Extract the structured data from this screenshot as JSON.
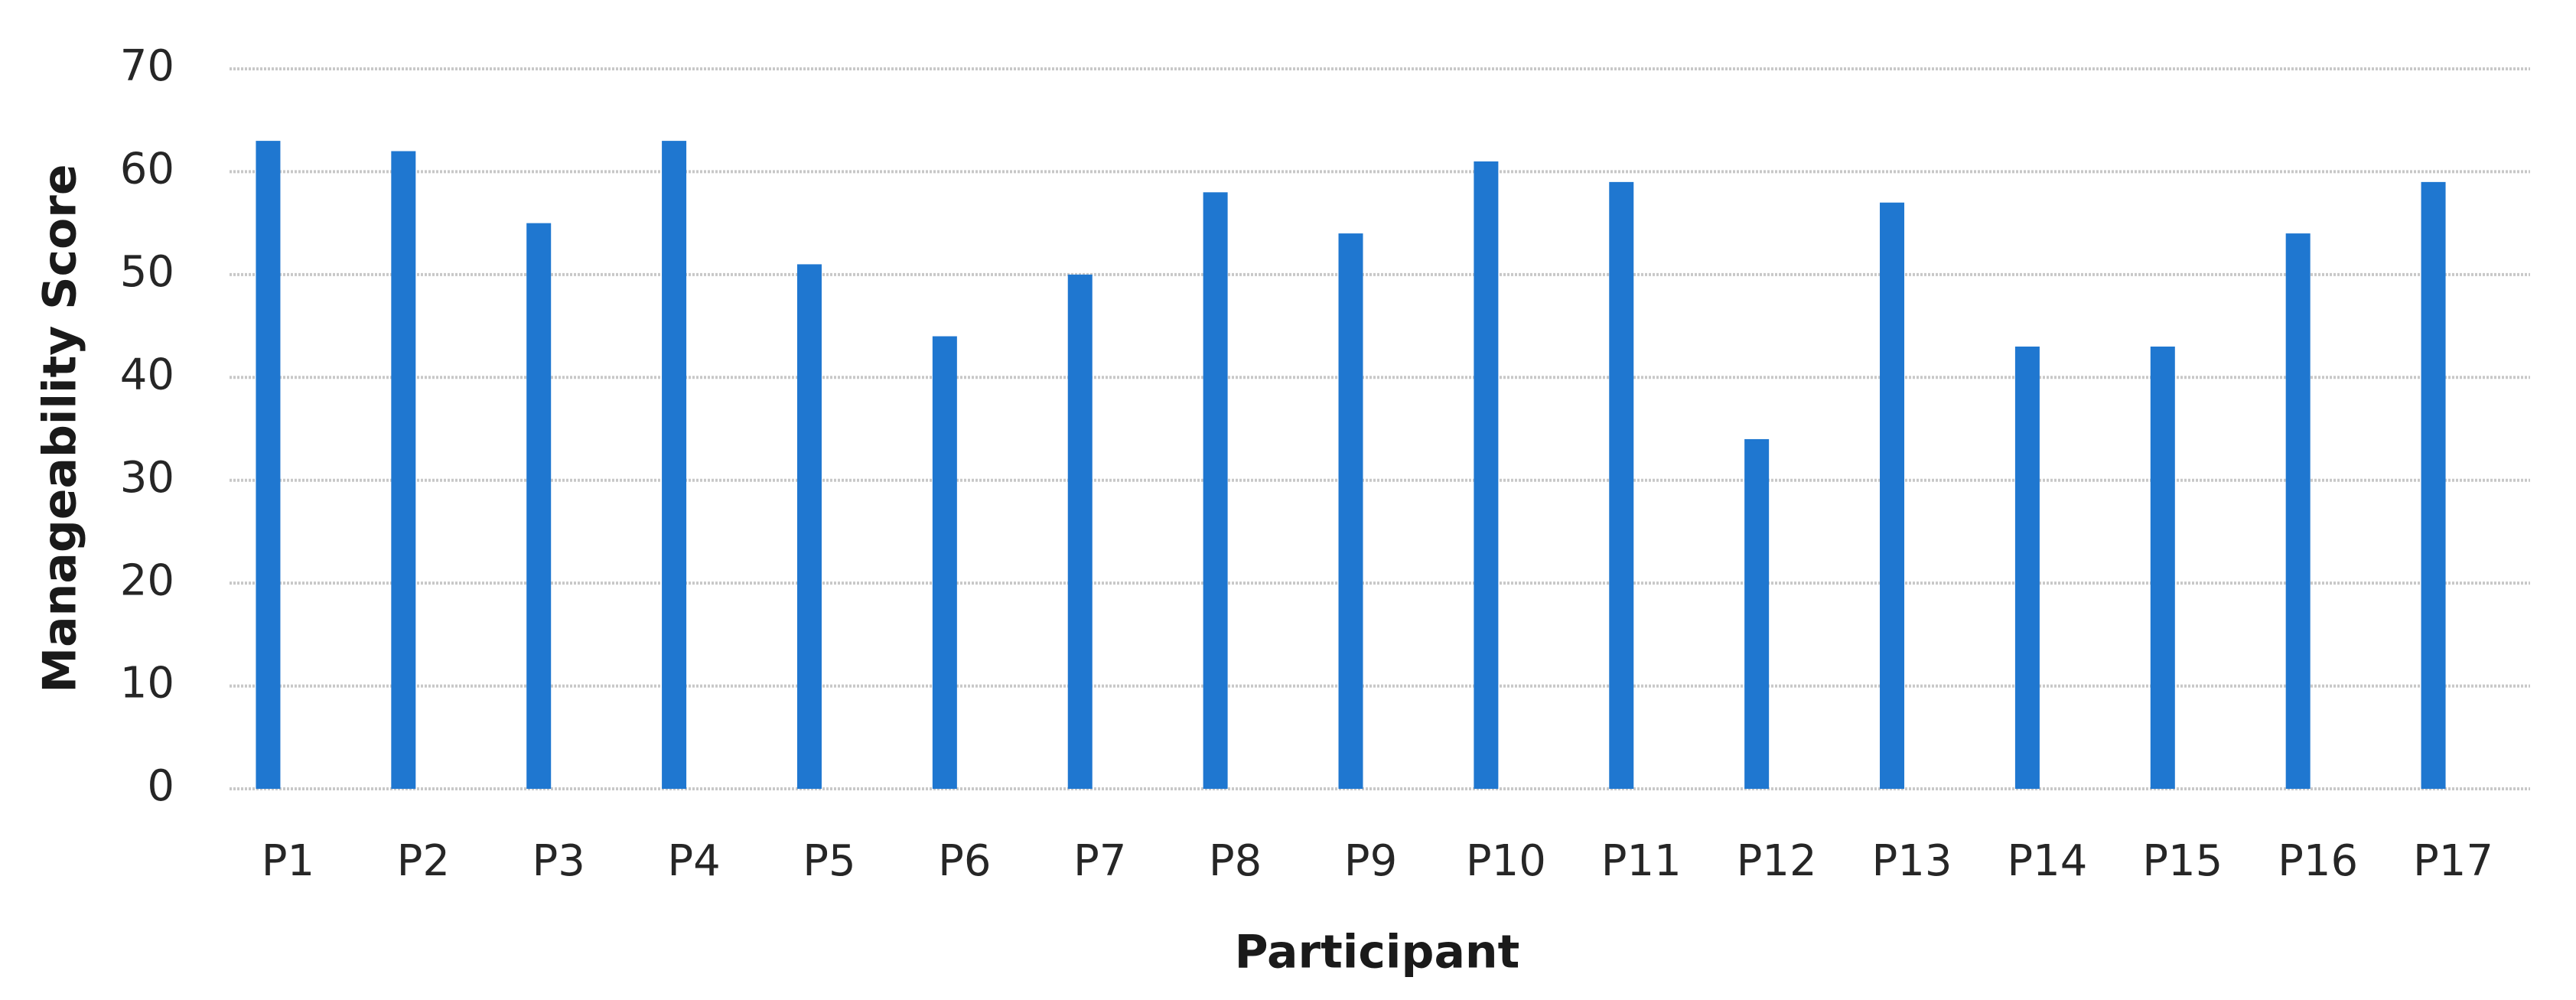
{
  "chart_data": {
    "type": "bar",
    "x_label": "Participant",
    "y_label": "Manageability Score",
    "categories": [
      "P1",
      "P2",
      "P3",
      "P4",
      "P5",
      "P6",
      "P7",
      "P8",
      "P9",
      "P10",
      "P11",
      "P12",
      "P13",
      "P14",
      "P15",
      "P16",
      "P17"
    ],
    "values": [
      63,
      62,
      55,
      63,
      51,
      44,
      50,
      58,
      54,
      61,
      59,
      34,
      57,
      43,
      43,
      54,
      59
    ],
    "color": "#1f77d0",
    "ylim": [
      0,
      70
    ],
    "yticks": [
      0,
      10,
      20,
      30,
      40,
      50,
      60,
      70
    ],
    "grid": true
  }
}
